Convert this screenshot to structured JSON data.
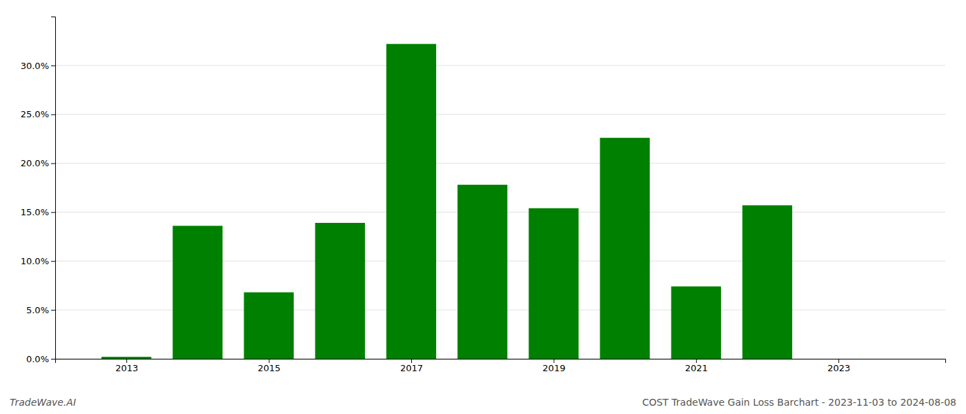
{
  "chart_data": {
    "type": "bar",
    "title": "COST TradeWave Gain Loss Barchart - 2023-11-03 to 2024-08-08",
    "annotations": [
      "TradeWave.AI"
    ],
    "x": [
      2013,
      2014,
      2015,
      2016,
      2017,
      2018,
      2019,
      2020,
      2021,
      2022,
      2023
    ],
    "values": [
      0.002,
      0.136,
      0.068,
      0.139,
      0.322,
      0.178,
      0.154,
      0.226,
      0.074,
      0.157,
      0.0
    ],
    "color": "#008000",
    "xlim": [
      2012.0,
      2024.5
    ],
    "xticks": [
      2013,
      2015,
      2017,
      2019,
      2021,
      2023
    ],
    "ylim": [
      0,
      0.35
    ],
    "yticks": [
      {
        "value": 0.0,
        "label": "0.0%"
      },
      {
        "value": 0.05,
        "label": "5.0%"
      },
      {
        "value": 0.1,
        "label": "10.0%"
      },
      {
        "value": 0.15,
        "label": "15.0%"
      },
      {
        "value": 0.2,
        "label": "20.0%"
      },
      {
        "value": 0.25,
        "label": "25.0%"
      },
      {
        "value": 0.3,
        "label": "30.0%"
      }
    ],
    "grid": true
  }
}
